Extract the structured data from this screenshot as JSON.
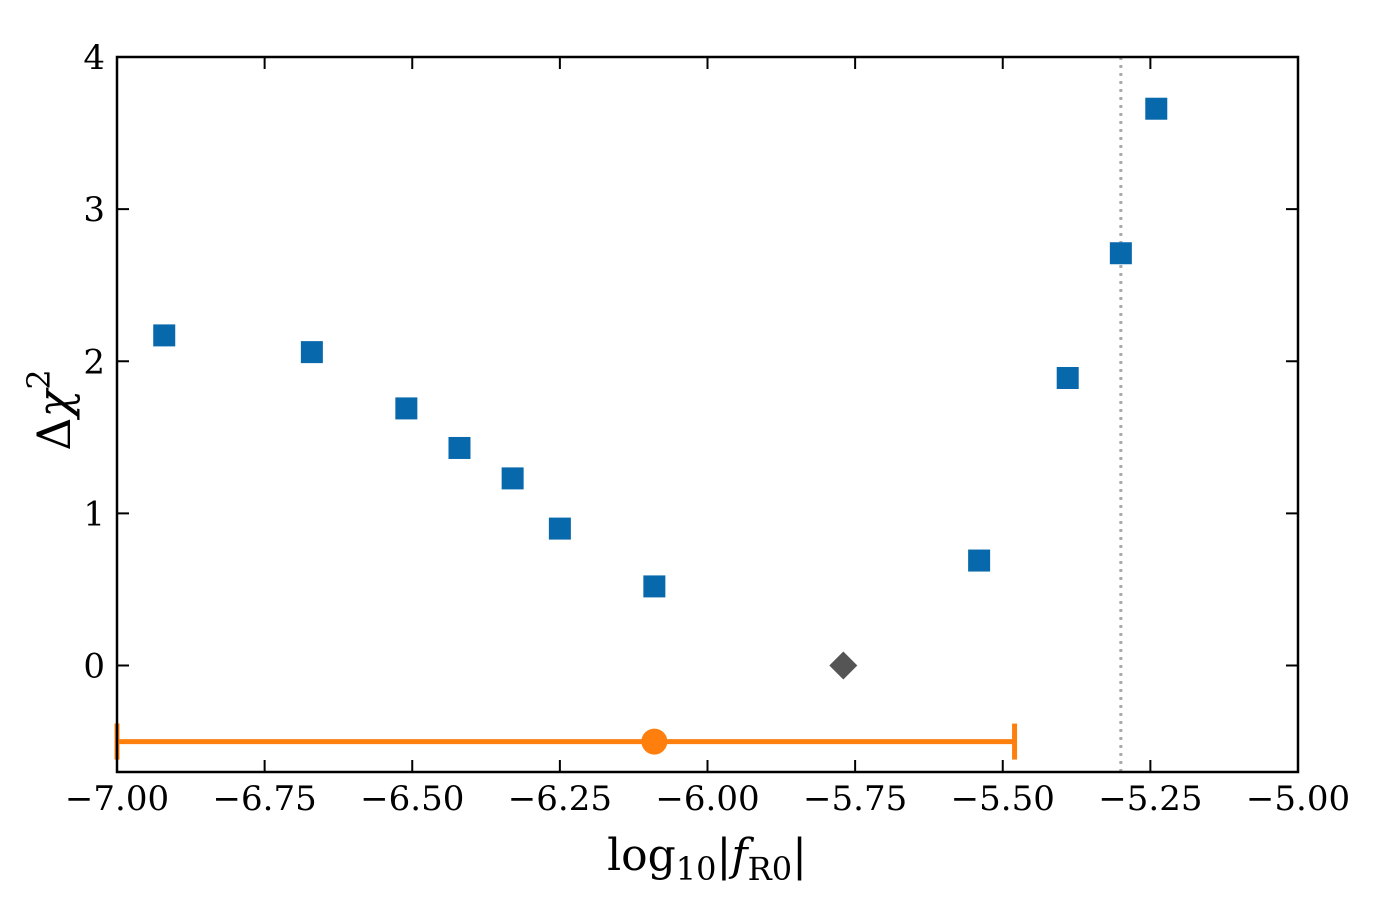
{
  "chart_data": {
    "type": "scatter",
    "title": "",
    "xlabel": {
      "prefix": "log",
      "sub": "10",
      "bar_open": "|",
      "var": "f",
      "var_sub": "R0",
      "bar_close": "|"
    },
    "ylabel": {
      "prefix": "Δ",
      "var": "χ",
      "sup": "2"
    },
    "xlim": [
      -7.0,
      -5.0
    ],
    "ylim": [
      -0.7,
      4.0
    ],
    "xticks": [
      -7.0,
      -6.75,
      -6.5,
      -6.25,
      -6.0,
      -5.75,
      -5.5,
      -5.25,
      -5.0
    ],
    "xtick_labels": [
      "−7.00",
      "−6.75",
      "−6.50",
      "−6.25",
      "−6.00",
      "−5.75",
      "−5.50",
      "−5.25",
      "−5.00"
    ],
    "yticks": [
      0,
      1,
      2,
      3,
      4
    ],
    "ytick_labels": [
      "0",
      "1",
      "2",
      "3",
      "4"
    ],
    "grid": false,
    "series": [
      {
        "marker": "square",
        "color": "#0868ac",
        "points": [
          {
            "x": -6.92,
            "y": 2.17
          },
          {
            "x": -6.67,
            "y": 2.06
          },
          {
            "x": -6.51,
            "y": 1.69
          },
          {
            "x": -6.42,
            "y": 1.43
          },
          {
            "x": -6.33,
            "y": 1.23
          },
          {
            "x": -6.25,
            "y": 0.9
          },
          {
            "x": -6.09,
            "y": 0.52
          },
          {
            "x": -5.54,
            "y": 0.69
          },
          {
            "x": -5.39,
            "y": 1.89
          },
          {
            "x": -5.3,
            "y": 2.71
          },
          {
            "x": -5.24,
            "y": 3.66
          }
        ]
      },
      {
        "marker": "diamond",
        "color": "#555555",
        "points": [
          {
            "x": -5.77,
            "y": 0.0
          }
        ]
      }
    ],
    "errorbar": {
      "x": -6.09,
      "y": -0.5,
      "xmin": -7.0,
      "xmax": -5.48,
      "color": "#ff7f0e"
    },
    "vline": {
      "x": -5.3,
      "color": "#aaaaaa",
      "style": "dotted"
    }
  }
}
